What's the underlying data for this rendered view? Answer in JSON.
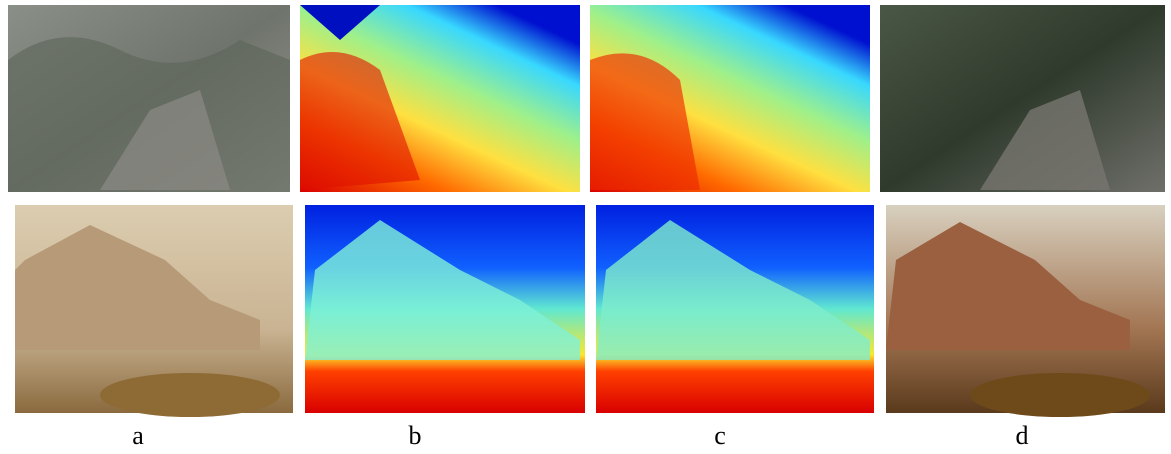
{
  "panel_labels": [
    "a",
    "b",
    "c",
    "d"
  ]
}
